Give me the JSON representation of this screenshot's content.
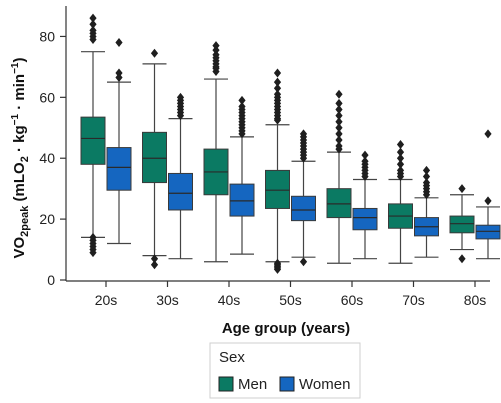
{
  "chart_data": {
    "type": "box",
    "xlabel": "Age group (years)",
    "ylabel_main": "VO",
    "ylabel_sub": "2peak",
    "ylabel_rest": " (mLO",
    "ylabel_sub2": "2",
    "ylabel_tail": " · kg",
    "ylabel_sup1": "−1",
    "ylabel_mid": " · min",
    "ylabel_sup2": "−1",
    "ylabel_close": ")",
    "ylim": [
      0,
      90
    ],
    "yticks": [
      "0",
      "20",
      "40",
      "60",
      "80"
    ],
    "categories": [
      "20s",
      "30s",
      "40s",
      "50s",
      "60s",
      "70s",
      "80s"
    ],
    "legend": {
      "title": "Sex",
      "placement": "bottom-right",
      "items": [
        {
          "name": "Men",
          "color": "#0b7a63"
        },
        {
          "name": "Women",
          "color": "#1566c0"
        }
      ]
    },
    "series": [
      {
        "name": "Men",
        "color": "#0b7a63",
        "boxes": [
          {
            "min": 14,
            "q1": 38,
            "median": 46.5,
            "q3": 53.5,
            "max": 75,
            "outliers": [
              86,
              84,
              82,
              81,
              80,
              79,
              14,
              13,
              12,
              11,
              10,
              9
            ]
          },
          {
            "min": 8,
            "q1": 32,
            "median": 40,
            "q3": 48.5,
            "max": 71,
            "outliers": [
              74.5,
              7,
              5
            ]
          },
          {
            "min": 6,
            "q1": 28,
            "median": 35.5,
            "q3": 43,
            "max": 66,
            "outliers": [
              77,
              75.5,
              74,
              73,
              72,
              71,
              70,
              69.5,
              68.5
            ]
          },
          {
            "min": 6,
            "q1": 23.5,
            "median": 29.5,
            "q3": 36,
            "max": 51,
            "outliers": [
              68,
              65,
              63,
              61,
              60,
              59,
              58,
              57,
              56,
              55,
              54,
              53,
              52.5,
              5.5,
              5,
              4.5,
              4,
              3.5
            ]
          },
          {
            "min": 5.5,
            "q1": 20.5,
            "median": 25,
            "q3": 30,
            "max": 42,
            "outliers": [
              61,
              58,
              56,
              54,
              52,
              50,
              48,
              46,
              44,
              43
            ]
          },
          {
            "min": 5.5,
            "q1": 17,
            "median": 21,
            "q3": 25,
            "max": 33,
            "outliers": [
              44.5,
              42,
              40,
              38,
              36,
              35,
              34
            ]
          },
          {
            "min": 10,
            "q1": 15.5,
            "median": 18.5,
            "q3": 21,
            "max": 28,
            "outliers": [
              30,
              7
            ]
          }
        ]
      },
      {
        "name": "Women",
        "color": "#1566c0",
        "boxes": [
          {
            "min": 12,
            "q1": 29.5,
            "median": 37,
            "q3": 43.5,
            "max": 65,
            "outliers": [
              78,
              68,
              66.5
            ]
          },
          {
            "min": 7,
            "q1": 23,
            "median": 28.5,
            "q3": 35,
            "max": 53,
            "outliers": [
              60,
              59,
              58,
              57,
              56,
              55,
              54
            ]
          },
          {
            "min": 8.5,
            "q1": 21,
            "median": 26,
            "q3": 31.5,
            "max": 47,
            "outliers": [
              59,
              57,
              56,
              55,
              54,
              53,
              52,
              51,
              50,
              49,
              48
            ]
          },
          {
            "min": 7.5,
            "q1": 19.5,
            "median": 23,
            "q3": 27.5,
            "max": 39,
            "outliers": [
              48,
              47,
              46,
              45,
              44,
              43,
              42,
              41,
              40,
              6
            ]
          },
          {
            "min": 7,
            "q1": 16.5,
            "median": 20.5,
            "q3": 23.5,
            "max": 33,
            "outliers": [
              41,
              39,
              38,
              37,
              36,
              35,
              34
            ]
          },
          {
            "min": 7.5,
            "q1": 14.5,
            "median": 17.5,
            "q3": 20.5,
            "max": 27,
            "outliers": [
              36,
              34,
              32,
              31,
              30,
              29,
              28
            ]
          },
          {
            "min": 7,
            "q1": 13.5,
            "median": 16,
            "q3": 18,
            "max": 24,
            "outliers": [
              48,
              26
            ]
          }
        ]
      }
    ]
  }
}
